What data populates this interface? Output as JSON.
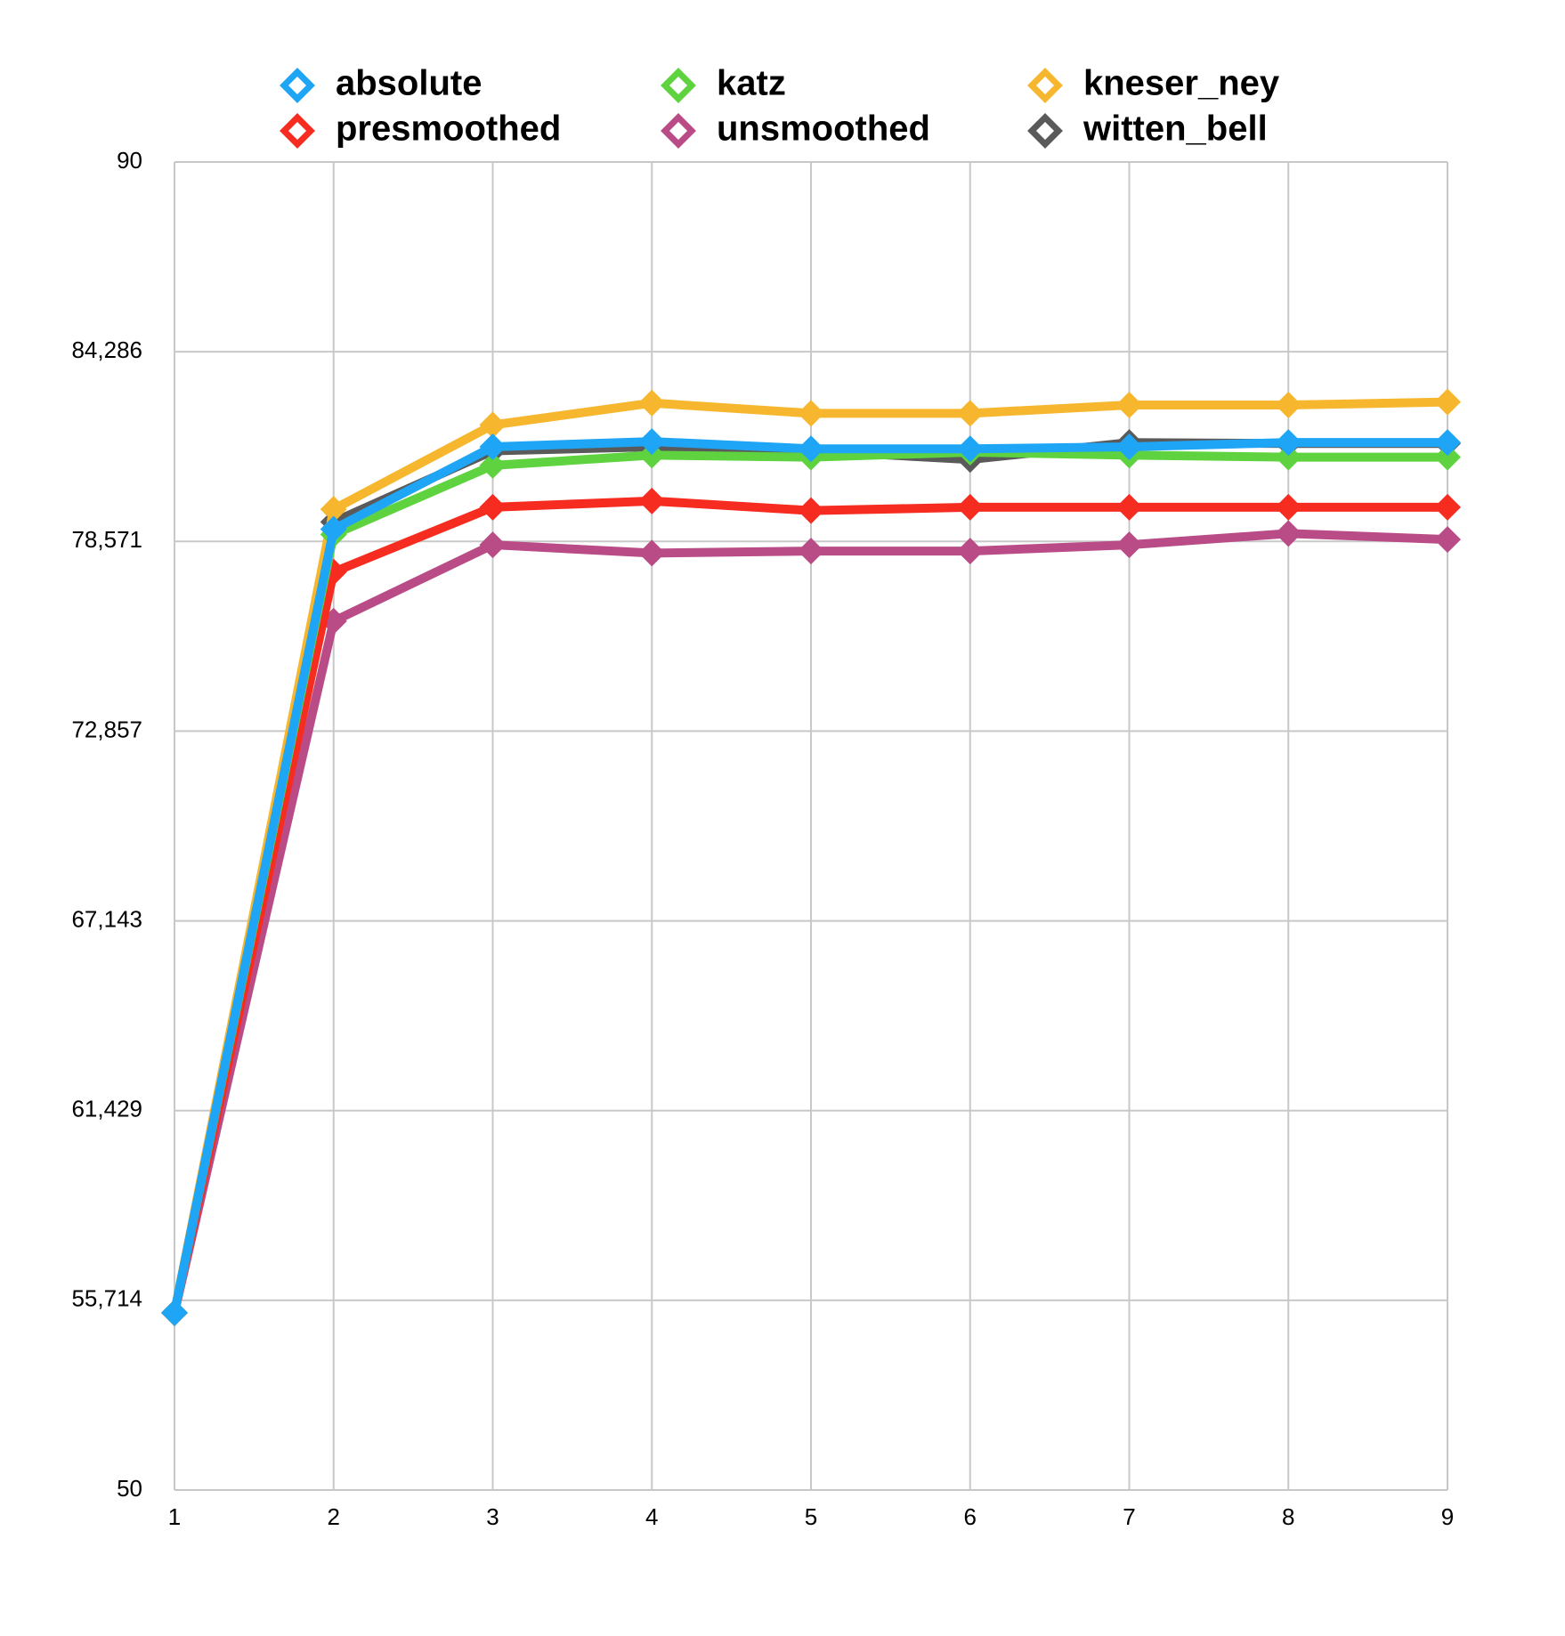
{
  "chart_data": {
    "type": "line",
    "x": [
      1,
      2,
      3,
      4,
      5,
      6,
      7,
      8,
      9
    ],
    "xlim": [
      1,
      9
    ],
    "xticks": [
      1,
      2,
      3,
      4,
      5,
      6,
      7,
      8,
      9
    ],
    "ylim": [
      50,
      90
    ],
    "yticks": [
      50,
      {
        "value": 55.714,
        "label": "55,714"
      },
      {
        "value": 61.429,
        "label": "61,429"
      },
      {
        "value": 67.143,
        "label": "67,143"
      },
      {
        "value": 72.857,
        "label": "72,857"
      },
      {
        "value": 78.571,
        "label": "78,571"
      },
      {
        "value": 84.286,
        "label": "84,286"
      },
      90
    ],
    "grid": true,
    "legend": "top",
    "series": [
      {
        "name": "absolute",
        "color": "#1ea5f5",
        "values": [
          55.34,
          78.94,
          81.42,
          81.58,
          81.36,
          81.36,
          81.42,
          81.55,
          81.55
        ]
      },
      {
        "name": "katz",
        "color": "#5fd33f",
        "values": [
          55.34,
          78.78,
          80.86,
          81.17,
          81.11,
          81.26,
          81.17,
          81.11,
          81.11
        ]
      },
      {
        "name": "kneser_ney",
        "color": "#f6b72f",
        "values": [
          55.34,
          79.54,
          82.08,
          82.74,
          82.43,
          82.43,
          82.68,
          82.68,
          82.77
        ]
      },
      {
        "name": "presmoothed",
        "color": "#f62c20",
        "values": [
          55.34,
          77.65,
          79.6,
          79.79,
          79.5,
          79.6,
          79.6,
          79.6,
          79.6
        ]
      },
      {
        "name": "unsmoothed",
        "color": "#b94c86",
        "values": [
          55.34,
          76.17,
          78.47,
          78.22,
          78.28,
          78.28,
          78.47,
          78.81,
          78.63
        ]
      },
      {
        "name": "witten_bell",
        "color": "#5a5a5a",
        "values": [
          55.34,
          79.16,
          81.3,
          81.42,
          81.3,
          81.04,
          81.55,
          81.52,
          81.52
        ]
      }
    ]
  }
}
